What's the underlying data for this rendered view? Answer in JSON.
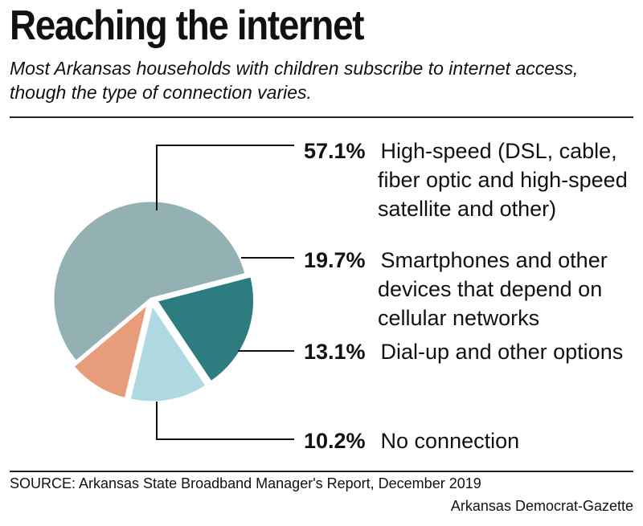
{
  "header": {
    "title": "Reaching the internet",
    "subtitle": "Most Arkansas households with children subscribe to internet access, though the type of connection varies."
  },
  "chart_data": {
    "type": "pie",
    "title": "Reaching the internet",
    "slices": [
      {
        "label_lines": [
          "High-speed (DSL, cable,",
          "fiber optic and high-speed",
          "satellite and other)"
        ],
        "value": 57.1,
        "value_label": "57.1%",
        "color": "#93b1b3"
      },
      {
        "label_lines": [
          "Smartphones and other",
          "devices that depend on",
          "cellular networks"
        ],
        "value": 19.7,
        "value_label": "19.7%",
        "color": "#2c7c80"
      },
      {
        "label_lines": [
          "Dial-up and other options"
        ],
        "value": 13.1,
        "value_label": "13.1%",
        "color": "#afd9e0"
      },
      {
        "label_lines": [
          "No connection"
        ],
        "value": 10.2,
        "value_label": "10.2%",
        "color": "#e79c7b"
      }
    ]
  },
  "footer": {
    "source": "SOURCE: Arkansas State Broadband Manager's Report, December 2019",
    "credit": "Arkansas Democrat-Gazette"
  }
}
